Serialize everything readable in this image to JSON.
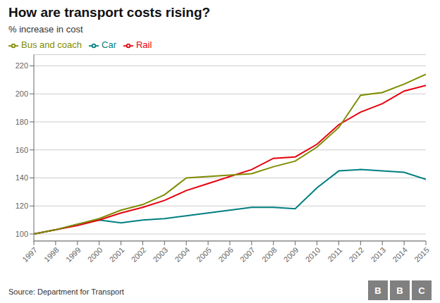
{
  "chart_data": {
    "type": "line",
    "title": "How are transport costs rising?",
    "y_label": "% increase in cost",
    "annotations": [
      "Source: Department for Transport",
      "BBC"
    ],
    "x": [
      1997,
      1998,
      1999,
      2000,
      2001,
      2002,
      2003,
      2004,
      2005,
      2006,
      2007,
      2008,
      2009,
      2010,
      2011,
      2012,
      2013,
      2014,
      2015
    ],
    "series": [
      {
        "name": "Car",
        "color": "#007f80",
        "values": [
          100,
          103,
          107,
          110,
          108,
          110,
          111,
          113,
          115,
          117,
          119,
          119,
          118,
          133,
          145,
          146,
          145,
          144,
          139
        ]
      },
      {
        "name": "Rail",
        "color": "#e8000d",
        "values": [
          100,
          103,
          106,
          110,
          115,
          119,
          124,
          131,
          136,
          141,
          146,
          154,
          155,
          164,
          178,
          187,
          193,
          202,
          206
        ]
      },
      {
        "name": "Bus and coach",
        "color": "#7f8c00",
        "values": [
          100,
          103,
          107,
          111,
          117,
          121,
          128,
          140,
          141,
          142,
          143,
          148,
          152,
          162,
          176,
          199,
          201,
          207,
          214
        ]
      }
    ],
    "xlim": [
      1997,
      2015
    ],
    "xticks": [
      1997,
      1998,
      1999,
      2000,
      2001,
      2002,
      2003,
      2004,
      2005,
      2006,
      2007,
      2008,
      2009,
      2010,
      2011,
      2012,
      2013,
      2014,
      2015
    ],
    "ylim": [
      95,
      228
    ],
    "yticks": [
      100,
      120,
      140,
      160,
      180,
      200,
      220
    ],
    "grid": true,
    "legend": "upper left"
  }
}
